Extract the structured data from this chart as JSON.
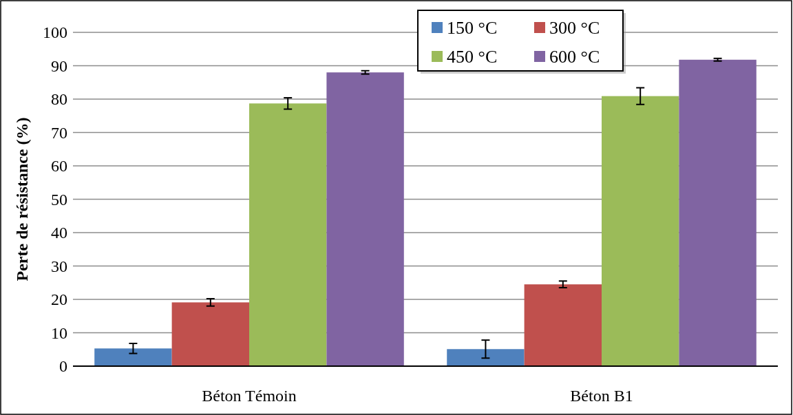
{
  "chart_data": {
    "type": "bar",
    "ylabel": "Perte de résistance (%)",
    "categories": [
      "Béton Témoin",
      "Béton B1"
    ],
    "series": [
      {
        "name": "150 °C",
        "color": "#4f81bd",
        "values": [
          5.3,
          5.1
        ],
        "errors": [
          1.5,
          2.7
        ]
      },
      {
        "name": "300 °C",
        "color": "#c0504d",
        "values": [
          19.1,
          24.5
        ],
        "errors": [
          1.1,
          1.0
        ]
      },
      {
        "name": "450 °C",
        "color": "#9bbb59",
        "values": [
          78.7,
          80.9
        ],
        "errors": [
          1.7,
          2.5
        ]
      },
      {
        "name": "600 °C",
        "color": "#8064a2",
        "values": [
          88.0,
          91.8
        ],
        "errors": [
          0.5,
          0.4
        ]
      }
    ],
    "ylim": [
      0,
      100
    ],
    "yticks": [
      0,
      10,
      20,
      30,
      40,
      50,
      60,
      70,
      80,
      90,
      100
    ],
    "grid": "y",
    "legend": "top right"
  }
}
